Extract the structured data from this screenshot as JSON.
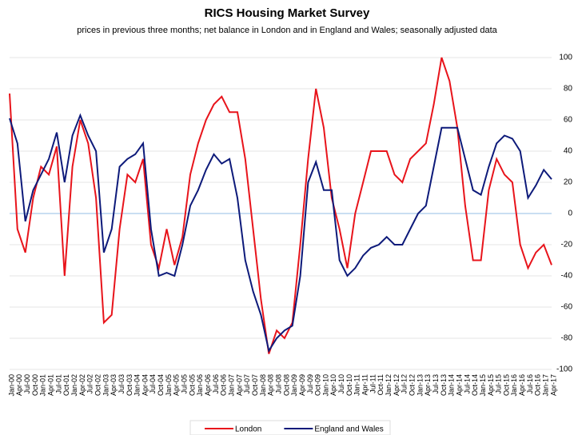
{
  "chart_data": {
    "type": "line",
    "title": "RICS Housing Market Survey",
    "subtitle": "prices in previous three months; net balance in London and in England and Wales; seasonally adjusted data",
    "categories": [
      "Jan-00",
      "Apr-00",
      "Jul-00",
      "Oct-00",
      "Jan-01",
      "Apr-01",
      "Jul-01",
      "Oct-01",
      "Jan-02",
      "Apr-02",
      "Jul-02",
      "Oct-02",
      "Jan-03",
      "Apr-03",
      "Jul-03",
      "Oct-03",
      "Jan-04",
      "Apr-04",
      "Jul-04",
      "Oct-04",
      "Jan-05",
      "Apr-05",
      "Jul-05",
      "Oct-05",
      "Jan-06",
      "Apr-06",
      "Jul-06",
      "Oct-06",
      "Jan-07",
      "Apr-07",
      "Jul-07",
      "Oct-07",
      "Jan-08",
      "Apr-08",
      "Jul-08",
      "Oct-08",
      "Jan-09",
      "Apr-09",
      "Jul-09",
      "Oct-09",
      "Jan-10",
      "Apr-10",
      "Jul-10",
      "Oct-10",
      "Jan-11",
      "Apr-11",
      "Jul-11",
      "Oct-11",
      "Jan-12",
      "Apr-12",
      "Jul-12",
      "Oct-12",
      "Jan-13",
      "Apr-13",
      "Jul-13",
      "Oct-13",
      "Jan-14",
      "Apr-14",
      "Jul-14",
      "Oct-14",
      "Jan-15",
      "Apr-15",
      "Jul-15",
      "Oct-15",
      "Jan-16",
      "Apr-16",
      "Jul-16",
      "Oct-16",
      "Jan-17",
      "Apr-17"
    ],
    "series": [
      {
        "name": "London",
        "color": "#e8141b",
        "values": [
          77,
          -10,
          -25,
          10,
          30,
          25,
          43,
          -40,
          30,
          60,
          45,
          10,
          -70,
          -65,
          -10,
          25,
          20,
          35,
          -20,
          -35,
          -10,
          -33,
          -15,
          25,
          45,
          60,
          70,
          75,
          65,
          65,
          35,
          -10,
          -55,
          -90,
          -75,
          -80,
          -70,
          -20,
          35,
          80,
          55,
          10,
          -10,
          -35,
          0,
          20,
          40,
          40,
          40,
          25,
          20,
          35,
          40,
          45,
          70,
          100,
          85,
          55,
          5,
          -30,
          -30,
          15,
          35,
          25,
          20,
          -20,
          -35,
          -25,
          -20,
          -33
        ]
      },
      {
        "name": "England and Wales",
        "color": "#0d1a7a",
        "values": [
          61,
          45,
          -5,
          15,
          25,
          35,
          52,
          20,
          50,
          63,
          50,
          40,
          -25,
          -10,
          30,
          35,
          38,
          45,
          -10,
          -40,
          -38,
          -40,
          -20,
          5,
          15,
          28,
          38,
          32,
          35,
          10,
          -30,
          -50,
          -65,
          -88,
          -80,
          -75,
          -72,
          -40,
          20,
          33,
          15,
          15,
          -30,
          -40,
          -35,
          -27,
          -22,
          -20,
          -15,
          -20,
          -20,
          -10,
          0,
          5,
          30,
          55,
          55,
          55,
          35,
          15,
          12,
          30,
          45,
          50,
          48,
          40,
          10,
          18,
          28,
          22
        ]
      }
    ],
    "ylim": [
      -100,
      100
    ],
    "yticks": [
      -100,
      -80,
      -60,
      -40,
      -20,
      0,
      20,
      40,
      60,
      80,
      100
    ],
    "grid": true,
    "legend": "bottom"
  }
}
